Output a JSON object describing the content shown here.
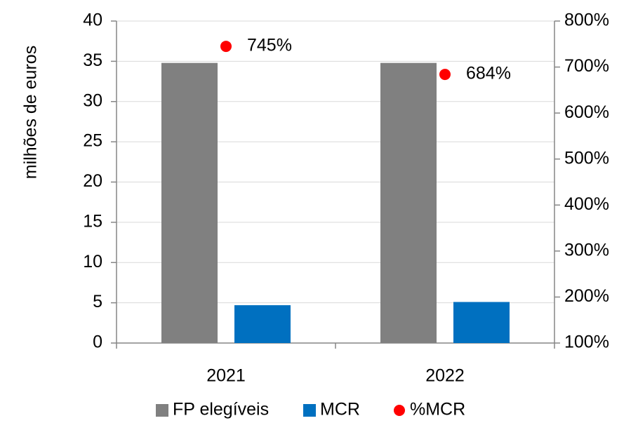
{
  "chart_data": {
    "type": "bar",
    "ylabel": "milhões de euros",
    "categories": [
      "2021",
      "2022"
    ],
    "series": [
      {
        "name": "FP elegíveis",
        "color": "#808080",
        "values": [
          34.8,
          34.8
        ]
      },
      {
        "name": "MCR",
        "color": "#0070c0",
        "values": [
          4.7,
          5.1
        ]
      },
      {
        "name": "%MCR",
        "color": "#ff0000",
        "axis": "y2",
        "type": "scatter",
        "values": [
          745,
          684
        ],
        "value_labels": [
          "745%",
          "684%"
        ]
      }
    ],
    "ylim": [
      0,
      40
    ],
    "yticks": [
      0,
      5,
      10,
      15,
      20,
      25,
      30,
      35,
      40
    ],
    "y2lim": [
      100,
      800
    ],
    "y2ticks": [
      {
        "value": 100,
        "label": "100%"
      },
      {
        "value": 200,
        "label": "200%"
      },
      {
        "value": 300,
        "label": "300%"
      },
      {
        "value": 400,
        "label": "400%"
      },
      {
        "value": 500,
        "label": "500%"
      },
      {
        "value": 600,
        "label": "600%"
      },
      {
        "value": 700,
        "label": "700%"
      },
      {
        "value": 800,
        "label": "800%"
      }
    ],
    "grid": true,
    "legend": "bottom"
  }
}
